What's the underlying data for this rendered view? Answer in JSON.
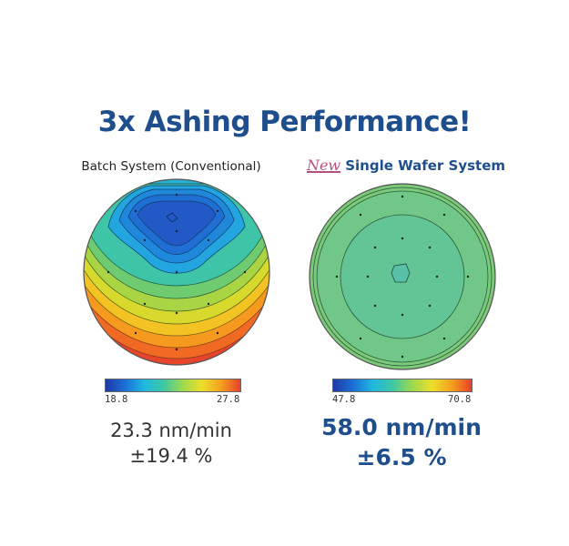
{
  "title": "3x Ashing Performance!",
  "left": {
    "caption": "Batch System (Conventional)",
    "scale_min": "18.8",
    "scale_max": "27.8",
    "rate": "23.3 nm/min",
    "uniformity": "±19.4 %"
  },
  "right": {
    "new_label": "New",
    "caption": "Single Wafer System",
    "scale_min": "47.8",
    "scale_max": "70.8",
    "rate": "58.0 nm/min",
    "uniformity": "±6.5 %"
  },
  "colors": {
    "title": "#1f4e8c",
    "new_label": "#b4527e"
  }
}
